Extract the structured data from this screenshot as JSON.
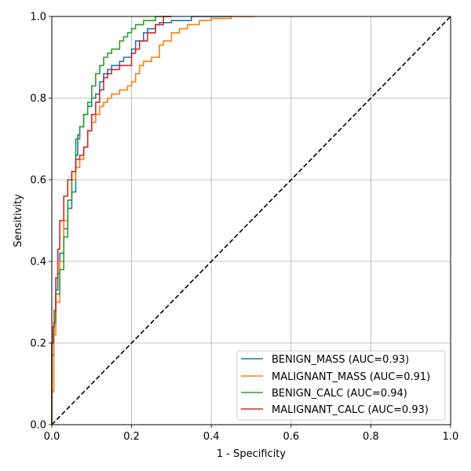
{
  "chart_data": {
    "type": "line",
    "title": "",
    "xlabel": "1 - Specificity",
    "ylabel": "Sensitivity",
    "xlim": [
      0,
      1
    ],
    "ylim": [
      0,
      1
    ],
    "grid": true,
    "legend_position": "bottom-right",
    "xticks": [
      "0.0",
      "0.2",
      "0.4",
      "0.6",
      "0.8",
      "1.0"
    ],
    "yticks": [
      "0.0",
      "0.2",
      "0.4",
      "0.6",
      "0.8",
      "1.0"
    ],
    "reference_line": {
      "x": [
        0,
        1
      ],
      "y": [
        0,
        1
      ],
      "style": "dashed",
      "color": "#000000"
    },
    "series": [
      {
        "name": "BENIGN_MASS (AUC=0.93)",
        "color": "#1f77b4",
        "x": [
          0,
          0.005,
          0.01,
          0.015,
          0.02,
          0.03,
          0.04,
          0.05,
          0.06,
          0.065,
          0.07,
          0.08,
          0.09,
          0.1,
          0.11,
          0.12,
          0.13,
          0.14,
          0.15,
          0.17,
          0.18,
          0.2,
          0.21,
          0.23,
          0.24,
          0.26,
          0.27,
          0.3,
          0.35,
          0.38,
          0.45
        ],
        "y": [
          0,
          0.17,
          0.25,
          0.33,
          0.37,
          0.42,
          0.48,
          0.53,
          0.57,
          0.66,
          0.71,
          0.73,
          0.76,
          0.78,
          0.8,
          0.81,
          0.84,
          0.86,
          0.87,
          0.88,
          0.89,
          0.9,
          0.92,
          0.94,
          0.96,
          0.97,
          0.98,
          0.985,
          0.99,
          1.0,
          1.0
        ]
      },
      {
        "name": "MALIGNANT_MASS (AUC=0.91)",
        "color": "#ff7f0e",
        "x": [
          0,
          0.005,
          0.01,
          0.02,
          0.03,
          0.04,
          0.05,
          0.06,
          0.07,
          0.08,
          0.09,
          0.1,
          0.11,
          0.12,
          0.13,
          0.14,
          0.15,
          0.17,
          0.19,
          0.2,
          0.21,
          0.22,
          0.23,
          0.25,
          0.27,
          0.28,
          0.3,
          0.32,
          0.34,
          0.37,
          0.4,
          0.45,
          0.51
        ],
        "y": [
          0,
          0.08,
          0.22,
          0.3,
          0.4,
          0.5,
          0.55,
          0.6,
          0.63,
          0.65,
          0.68,
          0.72,
          0.74,
          0.76,
          0.78,
          0.79,
          0.8,
          0.81,
          0.82,
          0.83,
          0.84,
          0.86,
          0.88,
          0.89,
          0.9,
          0.93,
          0.94,
          0.96,
          0.97,
          0.98,
          0.99,
          0.995,
          1.0
        ]
      },
      {
        "name": "BENIGN_CALC (AUC=0.94)",
        "color": "#2ca02c",
        "x": [
          0,
          0.005,
          0.01,
          0.02,
          0.03,
          0.04,
          0.05,
          0.06,
          0.07,
          0.08,
          0.09,
          0.1,
          0.11,
          0.12,
          0.13,
          0.14,
          0.15,
          0.17,
          0.18,
          0.19,
          0.2,
          0.21,
          0.23,
          0.25,
          0.26,
          0.28,
          0.3
        ],
        "y": [
          0,
          0.2,
          0.25,
          0.32,
          0.38,
          0.46,
          0.55,
          0.62,
          0.7,
          0.73,
          0.76,
          0.79,
          0.83,
          0.86,
          0.88,
          0.9,
          0.91,
          0.92,
          0.94,
          0.95,
          0.96,
          0.97,
          0.98,
          0.99,
          0.99,
          1.0,
          1.0
        ]
      },
      {
        "name": "MALIGNANT_CALC (AUC=0.93)",
        "color": "#d62728",
        "x": [
          0,
          0.003,
          0.006,
          0.01,
          0.015,
          0.02,
          0.03,
          0.04,
          0.05,
          0.06,
          0.07,
          0.08,
          0.09,
          0.1,
          0.11,
          0.12,
          0.13,
          0.14,
          0.15,
          0.17,
          0.2,
          0.21,
          0.22,
          0.24,
          0.26,
          0.28,
          0.3
        ],
        "y": [
          0,
          0.2,
          0.24,
          0.28,
          0.36,
          0.43,
          0.5,
          0.56,
          0.6,
          0.62,
          0.65,
          0.66,
          0.68,
          0.72,
          0.76,
          0.79,
          0.82,
          0.85,
          0.86,
          0.87,
          0.88,
          0.91,
          0.92,
          0.94,
          0.96,
          0.98,
          1.0
        ]
      }
    ]
  }
}
